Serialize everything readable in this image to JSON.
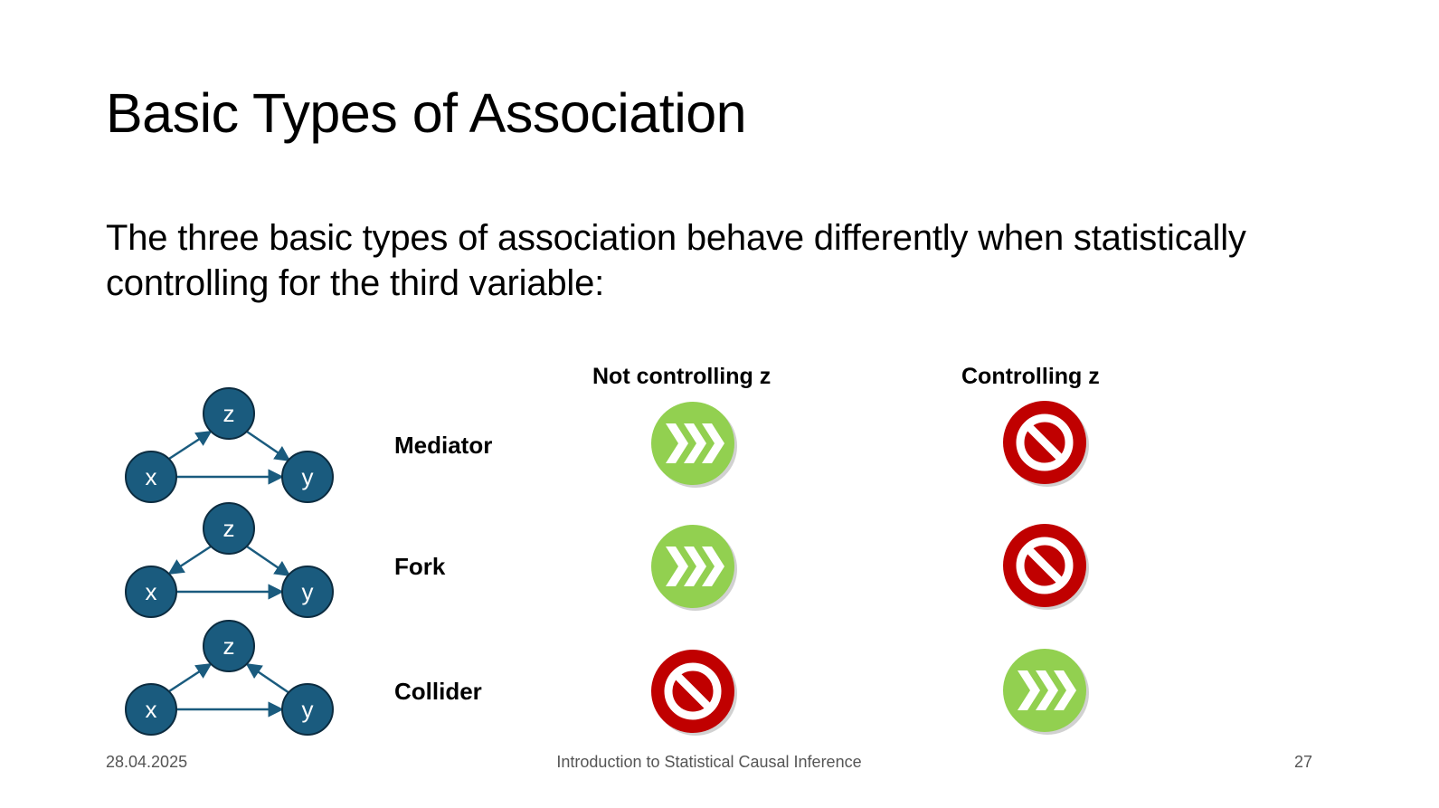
{
  "slide": {
    "title": "Basic Types of Association",
    "body": "The three basic types of association behave differently when statistically controlling for the third variable:"
  },
  "table": {
    "columns": [
      "Not controlling z",
      "Controlling z"
    ],
    "rows": [
      {
        "label": "Mediator",
        "not_controlling": "go-icon",
        "controlling": "prohibited-icon"
      },
      {
        "label": "Fork",
        "not_controlling": "go-icon",
        "controlling": "prohibited-icon"
      },
      {
        "label": "Collider",
        "not_controlling": "prohibited-icon",
        "controlling": "go-icon"
      }
    ]
  },
  "dags": {
    "node_labels": {
      "z": "z",
      "x": "x",
      "y": "y"
    },
    "diagrams": [
      {
        "name": "mediator",
        "edges": [
          [
            "x",
            "z"
          ],
          [
            "z",
            "y"
          ],
          [
            "x",
            "y"
          ]
        ]
      },
      {
        "name": "fork",
        "edges": [
          [
            "z",
            "x"
          ],
          [
            "z",
            "y"
          ],
          [
            "x",
            "y"
          ]
        ]
      },
      {
        "name": "collider",
        "edges": [
          [
            "x",
            "z"
          ],
          [
            "y",
            "z"
          ],
          [
            "x",
            "y"
          ]
        ]
      }
    ]
  },
  "colors": {
    "node": "#1a5b7e",
    "node_border": "#0c2c40",
    "go": "#92d050",
    "stop": "#c00000"
  },
  "footer": {
    "date": "28.04.2025",
    "center": "Introduction to Statistical Causal Inference",
    "page": "27"
  }
}
